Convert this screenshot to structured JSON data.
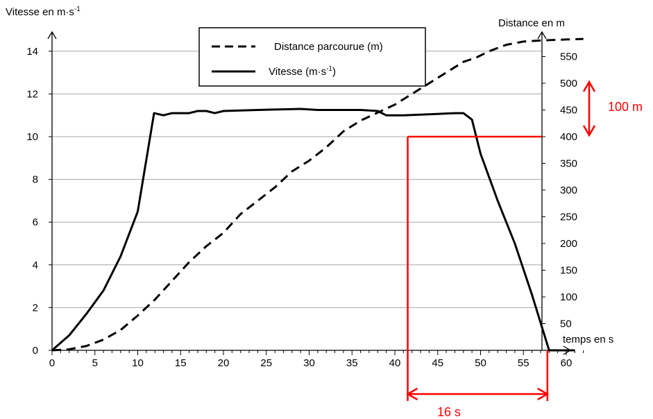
{
  "chart_data": {
    "type": "line",
    "y_left_label_main": "Vitesse en m·s",
    "y_left_label_sup": "-1",
    "y_right_label": "Distance en m",
    "x_label": "temps en s",
    "x_range": [
      0,
      63
    ],
    "y_left_range": [
      0,
      15
    ],
    "y_right_range": [
      0,
      600
    ],
    "x_ticks": [
      "0",
      "5",
      "10",
      "15",
      "20",
      "25",
      "30",
      "35",
      "40",
      "45",
      "50",
      "55",
      "60"
    ],
    "y_left_ticks": [
      "0",
      "2",
      "4",
      "6",
      "8",
      "10",
      "12",
      "14"
    ],
    "y_right_ticks": [
      "50",
      "100",
      "150",
      "200",
      "250",
      "300",
      "350",
      "400",
      "450",
      "500",
      "550"
    ],
    "grid": "horizontal",
    "legend_position": "top-center",
    "legend": {
      "distance": "Distance parcourue (m)",
      "speed_main": "Vitesse  (m·s",
      "speed_sup": "-1",
      "speed_close": ")"
    },
    "series": [
      {
        "name": "Vitesse",
        "axis": "left",
        "style": "solid",
        "points": [
          [
            0,
            0
          ],
          [
            2,
            0.7
          ],
          [
            4,
            1.7
          ],
          [
            6,
            2.8
          ],
          [
            8,
            4.4
          ],
          [
            10,
            6.5
          ],
          [
            11.9,
            11.1
          ],
          [
            13,
            11.0
          ],
          [
            14,
            11.1
          ],
          [
            16,
            11.1
          ],
          [
            17,
            11.2
          ],
          [
            18,
            11.2
          ],
          [
            19,
            11.1
          ],
          [
            20,
            11.2
          ],
          [
            24,
            11.25
          ],
          [
            29,
            11.3
          ],
          [
            31,
            11.25
          ],
          [
            36,
            11.25
          ],
          [
            38,
            11.2
          ],
          [
            39,
            11.0
          ],
          [
            41,
            11.0
          ],
          [
            44,
            11.05
          ],
          [
            47,
            11.1
          ],
          [
            48,
            11.1
          ],
          [
            49,
            10.8
          ],
          [
            50,
            9.2
          ],
          [
            52,
            7.0
          ],
          [
            54,
            5.0
          ],
          [
            56,
            2.6
          ],
          [
            58,
            0
          ],
          [
            61,
            0
          ]
        ]
      },
      {
        "name": "Distance parcourue",
        "axis": "right",
        "style": "dashed",
        "points": [
          [
            0,
            0
          ],
          [
            2,
            2
          ],
          [
            4,
            8
          ],
          [
            6,
            20
          ],
          [
            8,
            38
          ],
          [
            10,
            65
          ],
          [
            12,
            95
          ],
          [
            14,
            130
          ],
          [
            16,
            165
          ],
          [
            18,
            195
          ],
          [
            20,
            220
          ],
          [
            22,
            255
          ],
          [
            24,
            280
          ],
          [
            26,
            305
          ],
          [
            28,
            335
          ],
          [
            30,
            355
          ],
          [
            32,
            380
          ],
          [
            34,
            410
          ],
          [
            36,
            430
          ],
          [
            38,
            445
          ],
          [
            40,
            460
          ],
          [
            42,
            480
          ],
          [
            44,
            500
          ],
          [
            46,
            520
          ],
          [
            48,
            540
          ],
          [
            49.5,
            548
          ],
          [
            51,
            560
          ],
          [
            53,
            572
          ],
          [
            55,
            578
          ],
          [
            57,
            580
          ],
          [
            60,
            582
          ],
          [
            62,
            583
          ]
        ]
      }
    ],
    "annotations": {
      "distance_label": "100 m",
      "time_label": "16 s",
      "color": "#ff0000",
      "marker_time_start": 41.5,
      "marker_time_end": 57.8,
      "marker_distance": 400
    }
  }
}
